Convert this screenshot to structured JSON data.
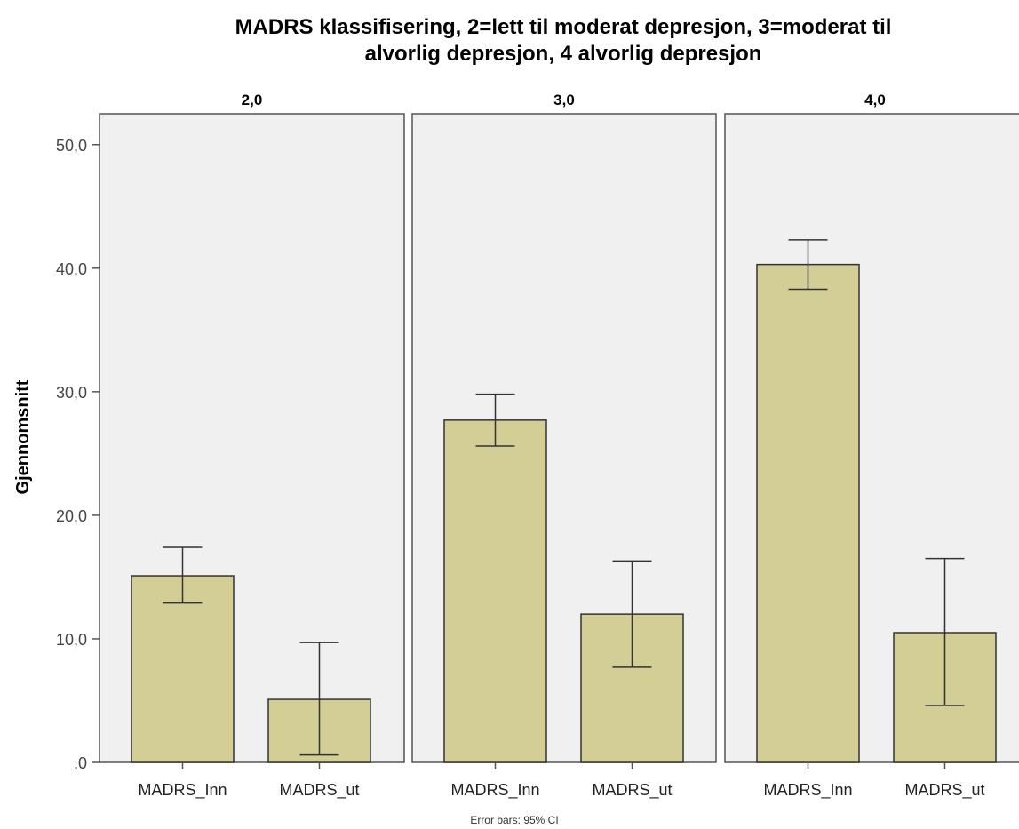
{
  "chart_data": {
    "type": "bar",
    "title_lines": [
      "MADRS klassifisering, 2=lett til moderat depresjon, 3=moderat til",
      "alvorlig depresjon, 4 alvorlig depresjon"
    ],
    "ylabel": "Gjennomsnitt",
    "ylim": [
      0,
      52.5
    ],
    "yticks": [
      0,
      10,
      20,
      30,
      40,
      50
    ],
    "ytick_labels": [
      ",0",
      "10,0",
      "20,0",
      "30,0",
      "40,0",
      "50,0"
    ],
    "categories": [
      "MADRS_Inn",
      "MADRS_ut"
    ],
    "panels": [
      {
        "label": "2,0",
        "values": [
          15.1,
          5.1
        ],
        "ci_low": [
          12.9,
          0.6
        ],
        "ci_high": [
          17.4,
          9.7
        ]
      },
      {
        "label": "3,0",
        "values": [
          27.7,
          12.0
        ],
        "ci_low": [
          25.6,
          7.7
        ],
        "ci_high": [
          29.8,
          16.3
        ]
      },
      {
        "label": "4,0",
        "values": [
          40.3,
          10.5
        ],
        "ci_low": [
          38.3,
          4.6
        ],
        "ci_high": [
          42.3,
          16.5
        ]
      }
    ],
    "footnote": "Error bars: 95% CI",
    "colors": {
      "bar_fill": "#d3cd96",
      "bar_stroke": "#333333",
      "panel_fill": "#f0f0f0",
      "panel_stroke": "#555555"
    }
  }
}
